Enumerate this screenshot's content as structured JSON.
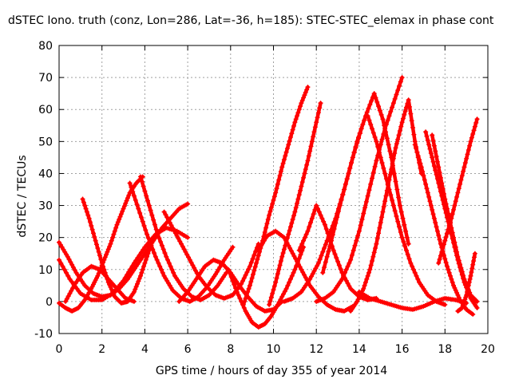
{
  "chart_data": {
    "type": "scatter",
    "title": "dSTEC Iono. truth (conz, Lon=286, Lat=-36, h=185): STEC-STEC_elemax in phase cont",
    "xlabel": "GPS time / hours of day 355 of year 2014",
    "ylabel": "dSTEC  / TECUs",
    "xlim": [
      0,
      20
    ],
    "ylim": [
      -10,
      80
    ],
    "xticks": [
      "0",
      "2",
      "4",
      "6",
      "8",
      "10",
      "12",
      "14",
      "16",
      "18",
      "20"
    ],
    "yticks": [
      "-10",
      "0",
      "10",
      "20",
      "30",
      "40",
      "50",
      "60",
      "70",
      "80"
    ],
    "grid": true,
    "marker": "+",
    "color": "#ff0000",
    "series": [
      {
        "x": [
          0.0,
          0.3,
          0.6,
          0.9,
          1.2,
          1.5,
          1.8,
          2.1,
          2.4,
          2.7,
          3.0,
          3.3,
          3.6,
          3.9
        ],
        "y": [
          -0.5,
          -2.0,
          -3.0,
          -2.0,
          0.5,
          4.0,
          8.0,
          13.0,
          18.0,
          24.0,
          29.0,
          34.0,
          37.0,
          39.0
        ]
      },
      {
        "x": [
          1.1,
          1.4,
          1.7,
          2.0,
          2.3,
          2.6,
          2.9,
          3.2,
          3.5,
          3.8,
          4.1,
          4.4
        ],
        "y": [
          32.0,
          26.0,
          19.0,
          12.0,
          6.0,
          1.5,
          -0.5,
          0.0,
          3.0,
          8.0,
          14.0,
          20.0
        ]
      },
      {
        "x": [
          0.0,
          0.4,
          0.8,
          1.2,
          1.6,
          2.0,
          2.4,
          2.8,
          3.2,
          3.6,
          4.0,
          4.4,
          4.8,
          5.2,
          5.6,
          6.0
        ],
        "y": [
          18.5,
          14.0,
          9.0,
          5.0,
          2.5,
          1.5,
          2.0,
          4.0,
          7.0,
          11.0,
          15.0,
          19.0,
          23.0,
          26.0,
          29.0,
          30.5
        ]
      },
      {
        "x": [
          3.8,
          4.2,
          4.6,
          5.0,
          5.4,
          5.8,
          6.2,
          6.6,
          7.0,
          7.4,
          7.8
        ],
        "y": [
          39.0,
          30.0,
          21.0,
          14.0,
          8.0,
          4.0,
          1.5,
          0.5,
          2.0,
          5.0,
          9.0
        ]
      },
      {
        "x": [
          3.3,
          3.7,
          4.1,
          4.5,
          4.9,
          5.3,
          5.7,
          6.1,
          6.5,
          6.9,
          7.3,
          7.7,
          8.1
        ],
        "y": [
          37.0,
          29.0,
          21.0,
          14.0,
          8.0,
          3.5,
          1.0,
          0.0,
          1.5,
          4.5,
          8.5,
          13.0,
          17.0
        ]
      },
      {
        "x": [
          4.9,
          5.3,
          5.7,
          6.1,
          6.5,
          6.9,
          7.3,
          7.7,
          8.1,
          8.5,
          8.9,
          9.3
        ],
        "y": [
          28.0,
          23.0,
          18.0,
          13.0,
          8.0,
          4.5,
          2.0,
          1.0,
          2.0,
          5.5,
          11.0,
          18.0
        ]
      },
      {
        "x": [
          0.0,
          0.5,
          1.0,
          1.5,
          2.0,
          2.5,
          3.0,
          3.5,
          4.0,
          4.5,
          5.0,
          5.5,
          6.0
        ],
        "y": [
          13.0,
          7.0,
          2.5,
          0.5,
          0.5,
          2.5,
          6.5,
          12.0,
          17.0,
          21.0,
          23.0,
          22.0,
          20.0
        ]
      },
      {
        "x": [
          5.6,
          6.0,
          6.4,
          6.8,
          7.2,
          7.6,
          8.0,
          8.4,
          8.8,
          9.2,
          9.6,
          10.0,
          10.4
        ],
        "y": [
          0.0,
          3.0,
          7.0,
          11.0,
          13.0,
          12.0,
          9.0,
          5.0,
          1.5,
          -1.5,
          -3.0,
          -2.5,
          0.0
        ]
      },
      {
        "x": [
          7.9,
          8.3,
          8.7,
          9.0,
          9.3,
          9.6,
          9.9,
          10.2,
          10.6,
          11.0,
          11.4
        ],
        "y": [
          10.0,
          3.0,
          -3.0,
          -6.5,
          -8.0,
          -7.0,
          -4.5,
          -1.0,
          4.0,
          10.0,
          17.0
        ]
      },
      {
        "x": [
          8.6,
          8.9,
          9.2,
          9.5,
          9.8,
          10.1,
          10.4,
          10.7,
          11.0,
          11.3,
          11.6
        ],
        "y": [
          -1.0,
          5.0,
          12.0,
          19.0,
          27.0,
          34.0,
          42.0,
          49.0,
          56.0,
          62.0,
          67.0
        ]
      },
      {
        "x": [
          9.8,
          10.1,
          10.4,
          10.7,
          11.0,
          11.3,
          11.6,
          11.9,
          12.2
        ],
        "y": [
          -1.0,
          6.0,
          14.0,
          21.0,
          28.0,
          36.0,
          44.0,
          53.0,
          62.0
        ]
      },
      {
        "x": [
          9.3,
          9.7,
          10.1,
          10.5,
          10.9,
          11.3,
          11.7,
          12.1,
          12.5,
          12.9,
          13.3,
          13.7
        ],
        "y": [
          16.0,
          20.5,
          22.0,
          20.0,
          15.0,
          10.0,
          5.0,
          1.5,
          -1.0,
          -2.5,
          -3.0,
          -1.5
        ]
      },
      {
        "x": [
          10.5,
          10.9,
          11.3,
          11.7,
          12.1,
          12.5,
          12.9,
          13.3,
          13.7,
          14.1
        ],
        "y": [
          0.0,
          1.0,
          3.0,
          7.0,
          12.0,
          19.0,
          26.0,
          35.0,
          45.0,
          54.0
        ]
      },
      {
        "x": [
          11.2,
          11.6,
          12.0,
          12.4,
          12.8,
          13.2,
          13.6,
          14.0,
          14.4,
          14.8
        ],
        "y": [
          16.0,
          22.0,
          30.0,
          24.0,
          16.0,
          9.0,
          4.0,
          1.5,
          0.5,
          1.0
        ]
      },
      {
        "x": [
          12.0,
          12.4,
          12.8,
          13.2,
          13.6,
          14.0,
          14.4,
          14.8,
          15.2,
          15.6,
          16.0
        ],
        "y": [
          0.0,
          1.0,
          3.0,
          7.0,
          13.0,
          22.0,
          33.0,
          44.0,
          54.0,
          62.0,
          70.0
        ]
      },
      {
        "x": [
          12.3,
          12.7,
          13.1,
          13.5,
          13.9,
          14.3,
          14.7,
          15.1,
          15.5,
          15.9,
          16.3
        ],
        "y": [
          9.0,
          19.0,
          30.0,
          40.0,
          50.0,
          58.0,
          65.0,
          57.0,
          45.0,
          30.0,
          18.0
        ]
      },
      {
        "x": [
          13.6,
          13.9,
          14.2,
          14.5,
          14.8,
          15.1,
          15.4,
          15.7,
          16.0,
          16.3,
          16.6,
          16.9
        ],
        "y": [
          -3.0,
          0.0,
          4.0,
          10.0,
          18.0,
          28.0,
          38.0,
          48.0,
          56.0,
          63.0,
          50.0,
          40.0
        ]
      },
      {
        "x": [
          14.4,
          14.8,
          15.2,
          15.6,
          16.0,
          16.4,
          16.8,
          17.2,
          17.6,
          18.0
        ],
        "y": [
          58.0,
          50.0,
          40.0,
          30.0,
          20.0,
          12.0,
          6.0,
          2.0,
          0.0,
          -1.0
        ]
      },
      {
        "x": [
          16.6,
          16.9,
          17.2,
          17.5,
          17.8,
          18.1,
          18.4,
          18.7,
          19.0,
          19.3
        ],
        "y": [
          49.0,
          42.0,
          34.0,
          26.0,
          18.0,
          11.0,
          5.0,
          0.5,
          -2.5,
          -4.0
        ]
      },
      {
        "x": [
          17.1,
          17.4,
          17.7,
          18.0,
          18.3,
          18.6,
          18.9,
          19.2,
          19.5
        ],
        "y": [
          53.0,
          45.0,
          37.0,
          29.0,
          21.0,
          13.0,
          6.0,
          1.0,
          -2.0
        ]
      },
      {
        "x": [
          17.4,
          17.7,
          18.0,
          18.3,
          18.6,
          18.9,
          19.2,
          19.5
        ],
        "y": [
          52.0,
          42.0,
          32.0,
          23.0,
          14.0,
          7.0,
          2.0,
          0.0
        ]
      },
      {
        "x": [
          17.7,
          18.0,
          18.3,
          18.6,
          18.9,
          19.2,
          19.5
        ],
        "y": [
          12.0,
          19.0,
          26.0,
          34.0,
          42.0,
          50.0,
          57.0
        ]
      },
      {
        "x": [
          18.6,
          18.8,
          19.0,
          19.2,
          19.4
        ],
        "y": [
          -3.0,
          -2.0,
          2.0,
          8.0,
          15.0
        ]
      },
      {
        "x": [
          14.0,
          14.5,
          15.0,
          15.5,
          16.0,
          16.5,
          17.0,
          17.5,
          18.0,
          18.5,
          19.0
        ],
        "y": [
          3.0,
          1.0,
          0.0,
          -1.0,
          -2.0,
          -2.5,
          -1.5,
          0.0,
          1.0,
          0.5,
          -0.5
        ]
      },
      {
        "x": [
          0.3,
          0.7,
          1.1,
          1.5,
          1.9,
          2.3,
          2.7,
          3.1,
          3.5
        ],
        "y": [
          0.0,
          5.0,
          9.0,
          11.0,
          10.0,
          7.0,
          4.0,
          1.0,
          0.0
        ]
      }
    ]
  }
}
